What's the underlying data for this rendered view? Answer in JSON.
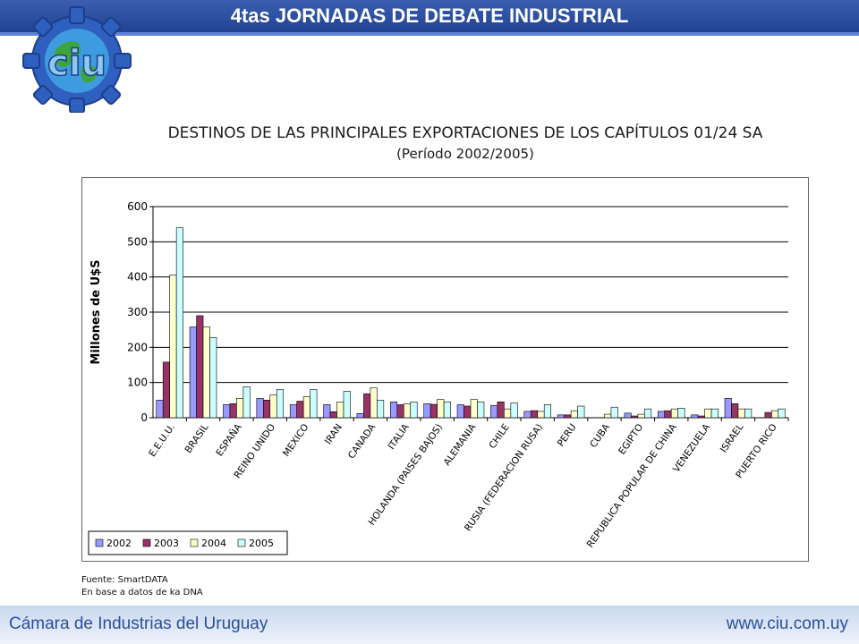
{
  "header": {
    "title": "4tas JORNADAS DE DEBATE INDUSTRIAL"
  },
  "logo": {
    "text": "ciu"
  },
  "chart_data": {
    "type": "bar",
    "title": "DESTINOS DE LAS PRINCIPALES EXPORTACIONES DE LOS CAPÍTULOS 01/24 SA",
    "subtitle": "(Período 2002/2005)",
    "ylabel": "Millones de U$S",
    "xlabel": "",
    "ylim": [
      0,
      600
    ],
    "yticks": [
      0,
      100,
      200,
      300,
      400,
      500,
      600
    ],
    "grid": true,
    "legend": "bottom-left",
    "categories": [
      "E.E.U.U.",
      "BRASIL",
      "ESPAÑA",
      "REINO UNIDO",
      "MEXICO",
      "IRAN",
      "CANADA",
      "ITALIA",
      "HOLANDA (PAISES BAJOS)",
      "ALEMANIA",
      "CHILE",
      "RUSIA (FEDERACION RUSA)",
      "PERU",
      "CUBA",
      "EGIPTO",
      "REPUBLICA POPULAR DE CHINA",
      "VENEZUELA",
      "ISRAEL",
      "PUERTO RICO"
    ],
    "series": [
      {
        "name": "2002",
        "color": "#9999ff",
        "values": [
          50,
          258,
          37,
          55,
          37,
          37,
          12,
          45,
          40,
          37,
          35,
          18,
          8,
          0,
          13,
          18,
          8,
          55,
          0
        ]
      },
      {
        "name": "2003",
        "color": "#993366",
        "values": [
          158,
          290,
          40,
          50,
          47,
          17,
          68,
          37,
          38,
          33,
          45,
          20,
          8,
          0,
          5,
          20,
          5,
          40,
          15
        ]
      },
      {
        "name": "2004",
        "color": "#ffffcc",
        "values": [
          405,
          258,
          55,
          65,
          60,
          45,
          85,
          40,
          52,
          52,
          25,
          18,
          20,
          10,
          10,
          25,
          25,
          25,
          20
        ]
      },
      {
        "name": "2005",
        "color": "#ccffff",
        "values": [
          540,
          228,
          88,
          80,
          80,
          75,
          50,
          45,
          45,
          45,
          42,
          37,
          33,
          30,
          25,
          27,
          25,
          25,
          25
        ]
      }
    ]
  },
  "source": {
    "line1": "Fuente: SmartDATA",
    "line2": "En base a datos de ka DNA"
  },
  "footer": {
    "left": "Cámara de Industrias del Uruguay",
    "right": "www.ciu.com.uy"
  }
}
